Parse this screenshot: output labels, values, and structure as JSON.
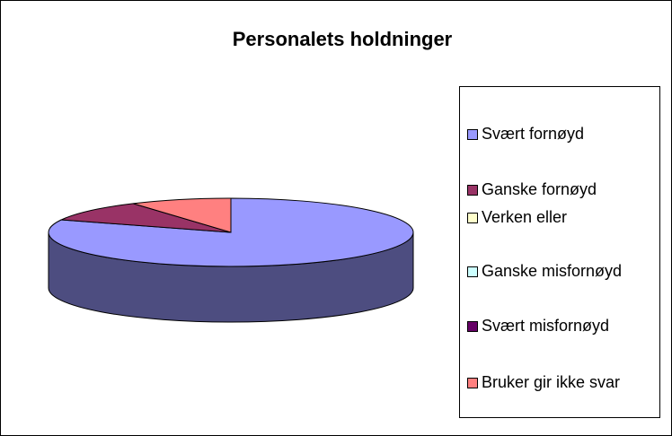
{
  "chart_data": {
    "type": "pie",
    "title": "Personalets holdninger",
    "categories": [
      "Svært fornøyd",
      "Ganske fornøyd",
      "Verken eller",
      "Ganske misfornøyd",
      "Svært misfornøyd",
      "Bruker gir ikke svar"
    ],
    "values": [
      81,
      10,
      0,
      0,
      0,
      9
    ],
    "colors": [
      "#9999ff",
      "#993366",
      "#ffffcc",
      "#ccffff",
      "#660066",
      "#ff8080"
    ]
  }
}
